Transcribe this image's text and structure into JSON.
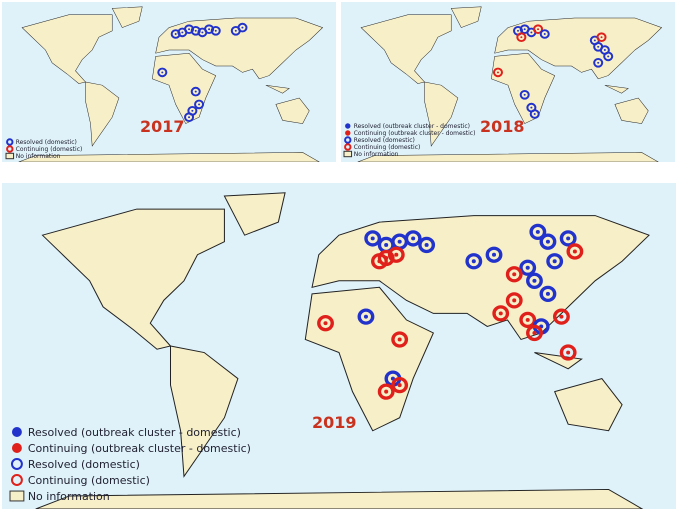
{
  "maps": [
    {
      "year": "2017",
      "legend": [
        "Resolved (domestic)",
        "Continuing (domestic)",
        "No information"
      ]
    },
    {
      "year": "2018",
      "legend": [
        "Resolved (outbreak cluster - domestic)",
        "Continuing (outbreak cluster - domestic)",
        "Resolved (domestic)",
        "Continuing (domestic)",
        "No information"
      ]
    },
    {
      "year": "2019",
      "legend": [
        "Resolved (outbreak cluster - domestic)",
        "Continuing (outbreak cluster - domestic)",
        "Resolved (domestic)",
        "Continuing (domestic)",
        "No information"
      ]
    }
  ]
}
